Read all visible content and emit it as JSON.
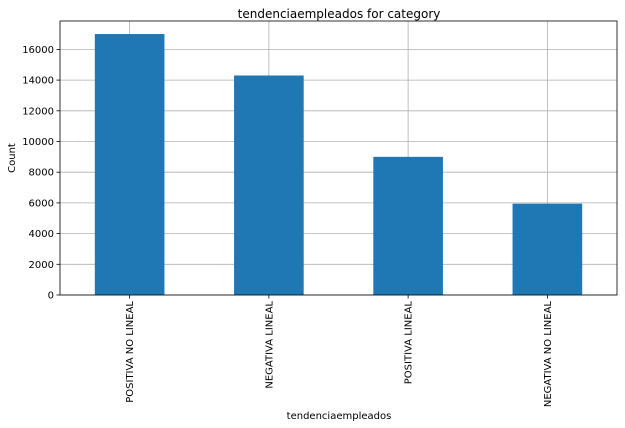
{
  "chart_data": {
    "type": "bar",
    "title": "tendenciaempleados for category",
    "xlabel": "tendenciaempleados",
    "ylabel": "Count",
    "categories": [
      "POSITIVA NO LINEAL",
      "NEGATIVA LINEAL",
      "POSITIVA LINEAL",
      "NEGATIVA NO LINEAL"
    ],
    "values": [
      17000,
      14300,
      9000,
      5950
    ],
    "ylim": [
      0,
      17850
    ],
    "yticks": [
      0,
      2000,
      4000,
      6000,
      8000,
      10000,
      12000,
      14000,
      16000
    ],
    "grid": true,
    "bar_color": "#1f77b4"
  }
}
